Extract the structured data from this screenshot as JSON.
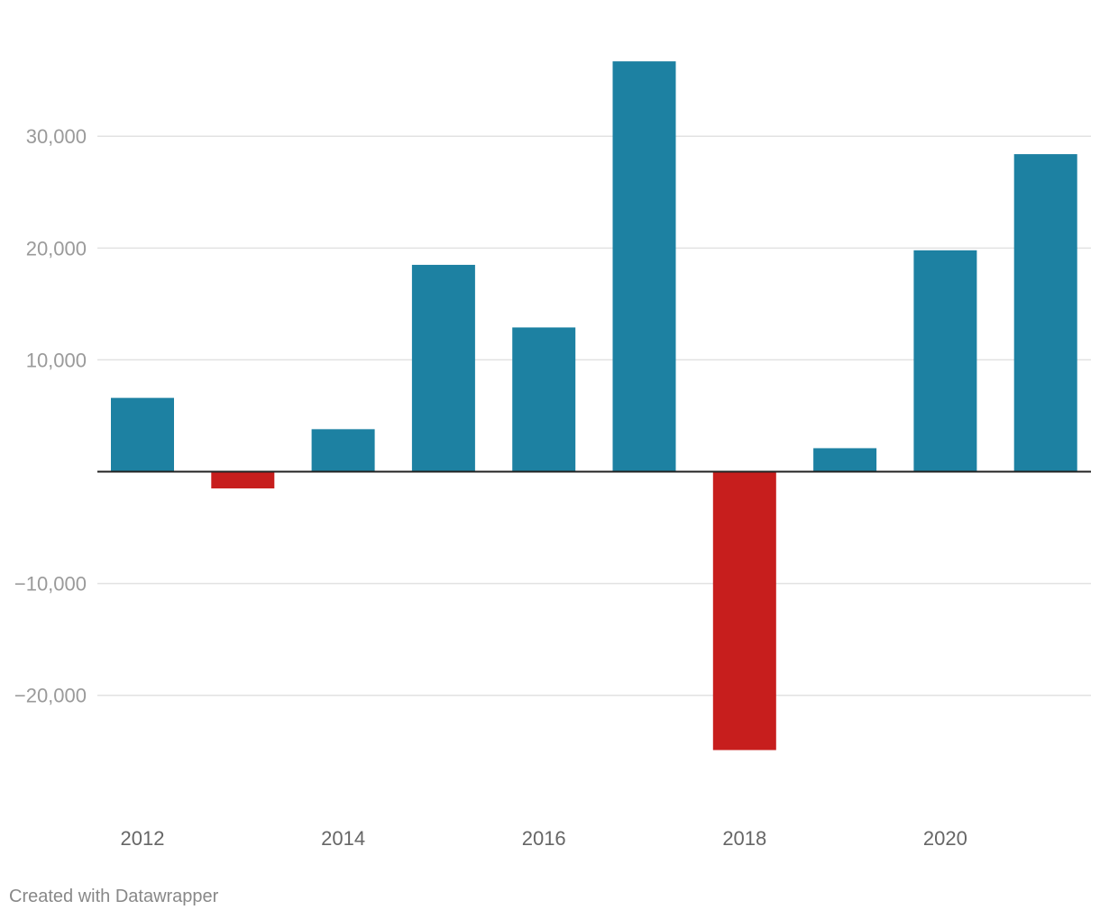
{
  "chart_data": {
    "type": "bar",
    "categories": [
      "2012",
      "2013",
      "2014",
      "2015",
      "2016",
      "2017",
      "2018",
      "2019",
      "2020",
      "2021"
    ],
    "values": [
      6600,
      -1500,
      3800,
      18500,
      12900,
      36700,
      -24900,
      2100,
      19800,
      28400
    ],
    "x_tick_labels": [
      "2012",
      "",
      "2014",
      "",
      "2016",
      "",
      "2018",
      "",
      "2020",
      ""
    ],
    "y_ticks": [
      {
        "value": 30000,
        "label": "30,000"
      },
      {
        "value": 20000,
        "label": "20,000"
      },
      {
        "value": 10000,
        "label": "10,000"
      },
      {
        "value": -10000,
        "label": "−10,000"
      },
      {
        "value": -20000,
        "label": "−20,000"
      }
    ],
    "ylim": [
      -27600,
      38400
    ],
    "grid": true,
    "legend": "none",
    "colors": {
      "positive": "#1d81a2",
      "negative": "#c71e1d"
    }
  },
  "footer": {
    "credit": "Created with Datawrapper"
  }
}
